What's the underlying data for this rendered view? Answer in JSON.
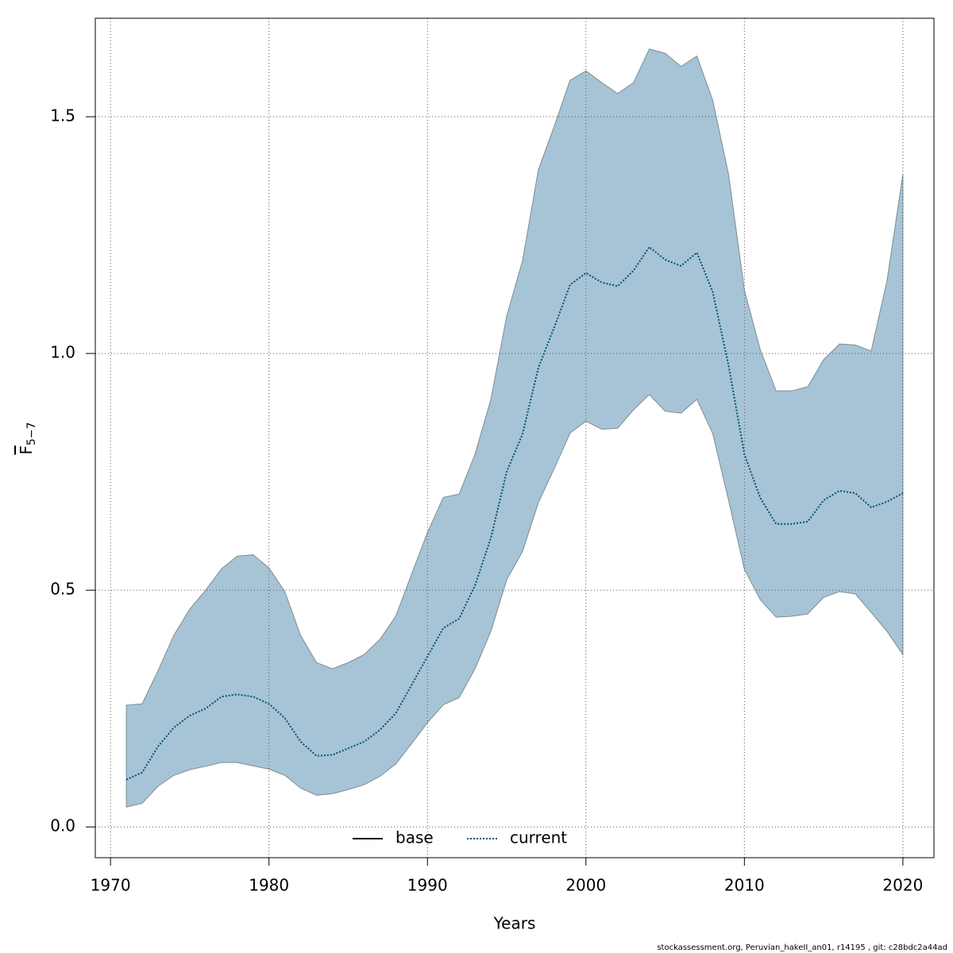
{
  "chart_data": {
    "type": "band-line",
    "xlabel": "Years",
    "ylabel": {
      "symbol": "F",
      "subscript": "5−7"
    },
    "footer": "stockassessment.org, Peruvian_hakeII_an01, r14195 , git: c28bdc2a44ad",
    "x": [
      1971,
      1972,
      1973,
      1974,
      1975,
      1976,
      1977,
      1978,
      1979,
      1980,
      1981,
      1982,
      1983,
      1984,
      1985,
      1986,
      1987,
      1988,
      1989,
      1990,
      1991,
      1992,
      1993,
      1994,
      1995,
      1996,
      1997,
      1998,
      1999,
      2000,
      2001,
      2002,
      2003,
      2004,
      2005,
      2006,
      2007,
      2008,
      2009,
      2010,
      2011,
      2012,
      2013,
      2014,
      2015,
      2016,
      2017,
      2018,
      2019,
      2020
    ],
    "series": [
      {
        "name": "current",
        "color": "#00507a",
        "dash": "dotted",
        "values": [
          0.1,
          0.115,
          0.17,
          0.21,
          0.235,
          0.25,
          0.275,
          0.28,
          0.275,
          0.26,
          0.23,
          0.18,
          0.15,
          0.152,
          0.166,
          0.18,
          0.205,
          0.24,
          0.3,
          0.36,
          0.42,
          0.44,
          0.51,
          0.61,
          0.75,
          0.83,
          0.97,
          1.055,
          1.145,
          1.17,
          1.15,
          1.142,
          1.175,
          1.225,
          1.198,
          1.185,
          1.213,
          1.13,
          0.975,
          0.787,
          0.695,
          0.64,
          0.64,
          0.645,
          0.69,
          0.71,
          0.705,
          0.675,
          0.687,
          0.705
        ],
        "upper": [
          0.257,
          0.26,
          0.33,
          0.405,
          0.46,
          0.5,
          0.545,
          0.572,
          0.575,
          0.547,
          0.497,
          0.404,
          0.347,
          0.334,
          0.347,
          0.364,
          0.396,
          0.445,
          0.534,
          0.622,
          0.696,
          0.703,
          0.787,
          0.903,
          1.079,
          1.196,
          1.388,
          1.48,
          1.577,
          1.597,
          1.572,
          1.549,
          1.572,
          1.643,
          1.634,
          1.606,
          1.628,
          1.535,
          1.378,
          1.134,
          1.008,
          0.921,
          0.921,
          0.93,
          0.987,
          1.02,
          1.018,
          1.005,
          1.154,
          1.378
        ],
        "lower": [
          0.042,
          0.05,
          0.086,
          0.109,
          0.121,
          0.128,
          0.136,
          0.136,
          0.129,
          0.122,
          0.109,
          0.082,
          0.067,
          0.07,
          0.079,
          0.089,
          0.107,
          0.133,
          0.176,
          0.22,
          0.258,
          0.273,
          0.334,
          0.413,
          0.522,
          0.582,
          0.685,
          0.757,
          0.832,
          0.857,
          0.84,
          0.842,
          0.881,
          0.913,
          0.878,
          0.874,
          0.903,
          0.831,
          0.69,
          0.544,
          0.48,
          0.443,
          0.445,
          0.45,
          0.485,
          0.497,
          0.492,
          0.453,
          0.413,
          0.364
        ],
        "band_color": "#a6c4d5"
      }
    ],
    "legend": [
      {
        "name": "base",
        "color": "#000000",
        "dash": "solid"
      },
      {
        "name": "current",
        "color": "#00507a",
        "dash": "dotted"
      }
    ],
    "xlim": [
      1969.04,
      2021.96
    ],
    "xticks": [
      1970,
      1980,
      1990,
      2000,
      2010,
      2020
    ],
    "ylim": [
      -0.065,
      1.708
    ],
    "yticks": [
      {
        "value": 0,
        "label": "0.0"
      },
      0.5,
      {
        "value": 1,
        "label": "1.0"
      },
      1.5
    ],
    "grid": true
  }
}
